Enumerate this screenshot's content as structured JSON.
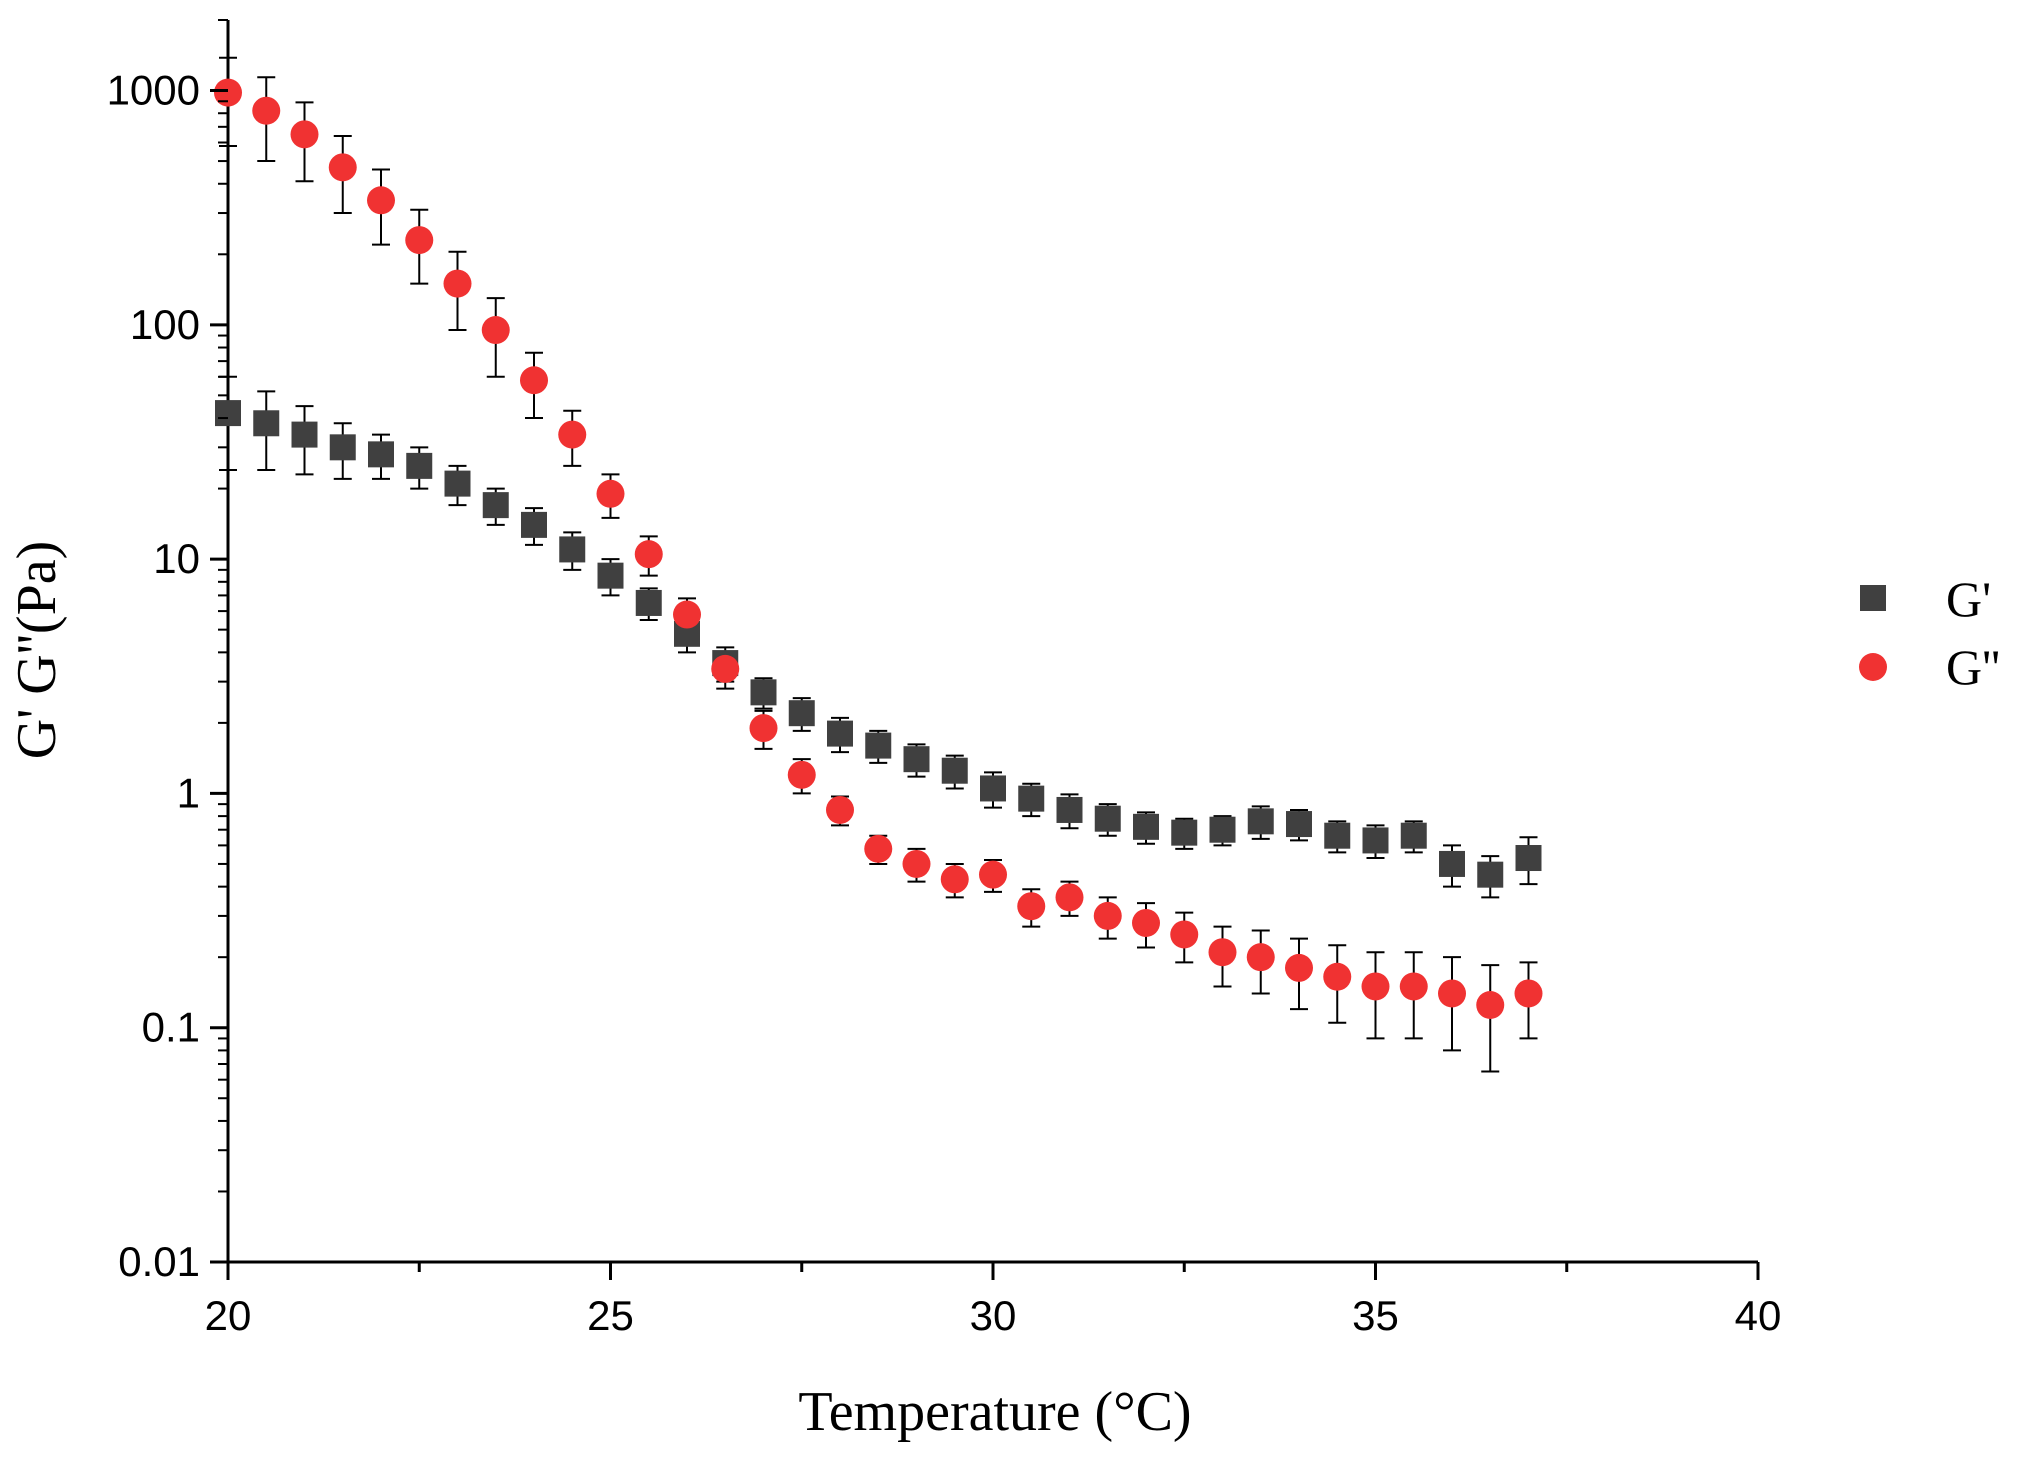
{
  "chart_data": {
    "type": "scatter",
    "title": "",
    "xlabel": "Temperature (°C)",
    "ylabel": "G' G''(Pa)",
    "xlim": [
      20,
      40
    ],
    "ylim": [
      0.01,
      2000
    ],
    "yscale": "log",
    "grid": false,
    "legend_position": "right",
    "x_ticks": [
      {
        "value": 20,
        "label": "20"
      },
      {
        "value": 25,
        "label": "25"
      },
      {
        "value": 30,
        "label": "30"
      },
      {
        "value": 35,
        "label": "35"
      },
      {
        "value": 40,
        "label": "40"
      }
    ],
    "y_ticks": [
      {
        "value": 0.01,
        "label": "0.01"
      },
      {
        "value": 0.1,
        "label": "0.1"
      },
      {
        "value": 1,
        "label": "1"
      },
      {
        "value": 10,
        "label": "10"
      },
      {
        "value": 100,
        "label": "100"
      },
      {
        "value": 1000,
        "label": "1000"
      }
    ],
    "series": [
      {
        "name": "G'",
        "marker": "square",
        "color": "#404040",
        "points": [
          {
            "x": 20.0,
            "y": 42,
            "err": 18
          },
          {
            "x": 20.5,
            "y": 38,
            "err": 14
          },
          {
            "x": 21.0,
            "y": 34,
            "err": 11
          },
          {
            "x": 21.5,
            "y": 30,
            "err": 8
          },
          {
            "x": 22.0,
            "y": 28,
            "err": 6
          },
          {
            "x": 22.5,
            "y": 25,
            "err": 5
          },
          {
            "x": 23.0,
            "y": 21,
            "err": 4
          },
          {
            "x": 23.5,
            "y": 17,
            "err": 3
          },
          {
            "x": 24.0,
            "y": 14,
            "err": 2.5
          },
          {
            "x": 24.5,
            "y": 11,
            "err": 2
          },
          {
            "x": 25.0,
            "y": 8.5,
            "err": 1.5
          },
          {
            "x": 25.5,
            "y": 6.5,
            "err": 1.0
          },
          {
            "x": 26.0,
            "y": 4.8,
            "err": 0.8
          },
          {
            "x": 26.5,
            "y": 3.6,
            "err": 0.6
          },
          {
            "x": 27.0,
            "y": 2.7,
            "err": 0.4
          },
          {
            "x": 27.5,
            "y": 2.2,
            "err": 0.35
          },
          {
            "x": 28.0,
            "y": 1.8,
            "err": 0.3
          },
          {
            "x": 28.5,
            "y": 1.6,
            "err": 0.25
          },
          {
            "x": 29.0,
            "y": 1.4,
            "err": 0.22
          },
          {
            "x": 29.5,
            "y": 1.25,
            "err": 0.2
          },
          {
            "x": 30.0,
            "y": 1.05,
            "err": 0.18
          },
          {
            "x": 30.5,
            "y": 0.95,
            "err": 0.15
          },
          {
            "x": 31.0,
            "y": 0.85,
            "err": 0.14
          },
          {
            "x": 31.5,
            "y": 0.78,
            "err": 0.12
          },
          {
            "x": 32.0,
            "y": 0.72,
            "err": 0.11
          },
          {
            "x": 32.5,
            "y": 0.68,
            "err": 0.1
          },
          {
            "x": 33.0,
            "y": 0.7,
            "err": 0.1
          },
          {
            "x": 33.5,
            "y": 0.76,
            "err": 0.12
          },
          {
            "x": 34.0,
            "y": 0.74,
            "err": 0.11
          },
          {
            "x": 34.5,
            "y": 0.66,
            "err": 0.1
          },
          {
            "x": 35.0,
            "y": 0.63,
            "err": 0.1
          },
          {
            "x": 35.5,
            "y": 0.66,
            "err": 0.1
          },
          {
            "x": 36.0,
            "y": 0.5,
            "err": 0.1
          },
          {
            "x": 36.5,
            "y": 0.45,
            "err": 0.09
          },
          {
            "x": 37.0,
            "y": 0.53,
            "err": 0.12
          }
        ]
      },
      {
        "name": "G''",
        "marker": "circle",
        "color": "#f03232",
        "points": [
          {
            "x": 20.0,
            "y": 980,
            "err": 400
          },
          {
            "x": 20.5,
            "y": 820,
            "err": 320
          },
          {
            "x": 21.0,
            "y": 650,
            "err": 240
          },
          {
            "x": 21.5,
            "y": 470,
            "err": 170
          },
          {
            "x": 22.0,
            "y": 340,
            "err": 120
          },
          {
            "x": 22.5,
            "y": 230,
            "err": 80
          },
          {
            "x": 23.0,
            "y": 150,
            "err": 55
          },
          {
            "x": 23.5,
            "y": 95,
            "err": 35
          },
          {
            "x": 24.0,
            "y": 58,
            "err": 18
          },
          {
            "x": 24.5,
            "y": 34,
            "err": 9
          },
          {
            "x": 25.0,
            "y": 19,
            "err": 4
          },
          {
            "x": 25.5,
            "y": 10.5,
            "err": 2
          },
          {
            "x": 26.0,
            "y": 5.8,
            "err": 1
          },
          {
            "x": 26.5,
            "y": 3.4,
            "err": 0.6
          },
          {
            "x": 27.0,
            "y": 1.9,
            "err": 0.35
          },
          {
            "x": 27.5,
            "y": 1.2,
            "err": 0.2
          },
          {
            "x": 28.0,
            "y": 0.85,
            "err": 0.12
          },
          {
            "x": 28.5,
            "y": 0.58,
            "err": 0.08
          },
          {
            "x": 29.0,
            "y": 0.5,
            "err": 0.08
          },
          {
            "x": 29.5,
            "y": 0.43,
            "err": 0.07
          },
          {
            "x": 30.0,
            "y": 0.45,
            "err": 0.07
          },
          {
            "x": 30.5,
            "y": 0.33,
            "err": 0.06
          },
          {
            "x": 31.0,
            "y": 0.36,
            "err": 0.06
          },
          {
            "x": 31.5,
            "y": 0.3,
            "err": 0.06
          },
          {
            "x": 32.0,
            "y": 0.28,
            "err": 0.06
          },
          {
            "x": 32.5,
            "y": 0.25,
            "err": 0.06
          },
          {
            "x": 33.0,
            "y": 0.21,
            "err": 0.06
          },
          {
            "x": 33.5,
            "y": 0.2,
            "err": 0.06
          },
          {
            "x": 34.0,
            "y": 0.18,
            "err": 0.06
          },
          {
            "x": 34.5,
            "y": 0.165,
            "err": 0.06
          },
          {
            "x": 35.0,
            "y": 0.15,
            "err": 0.06
          },
          {
            "x": 35.5,
            "y": 0.15,
            "err": 0.06
          },
          {
            "x": 36.0,
            "y": 0.14,
            "err": 0.06
          },
          {
            "x": 36.5,
            "y": 0.125,
            "err": 0.06
          },
          {
            "x": 37.0,
            "y": 0.14,
            "err": 0.05
          }
        ]
      }
    ]
  }
}
